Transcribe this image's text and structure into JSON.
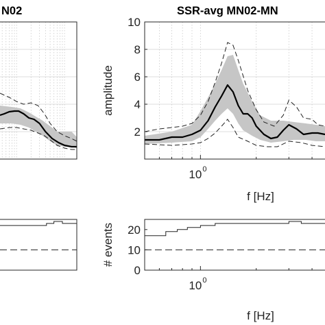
{
  "chart_data": [
    {
      "panel": "ssr-avg-mn02-left-top",
      "type": "line",
      "title": "N02",
      "x_scale": "log",
      "xlim": [
        0.45,
        18
      ],
      "ylim": [
        0,
        10
      ],
      "series": [
        {
          "role": "mean",
          "x": [
            0.45,
            0.55,
            0.7,
            0.9,
            1.1,
            1.4,
            1.8,
            2.3,
            3,
            4,
            5.5,
            7.5,
            10,
            14,
            18
          ],
          "y": [
            3.2,
            3.3,
            3.45,
            3.5,
            3.5,
            3.3,
            3.0,
            2.9,
            2.6,
            2.0,
            1.5,
            1.2,
            1.0,
            0.9,
            0.9
          ]
        },
        {
          "role": "mean-plus-std",
          "x": [
            0.45,
            0.7,
            1.0,
            1.4,
            2,
            2.8,
            3.8,
            5,
            7,
            10,
            14,
            18
          ],
          "y": [
            4.8,
            4.5,
            4.2,
            4.0,
            4.1,
            3.9,
            3.3,
            2.6,
            2.0,
            1.7,
            1.5,
            1.3
          ]
        },
        {
          "role": "mean-minus-std",
          "x": [
            0.45,
            0.7,
            1.0,
            1.4,
            2,
            2.8,
            3.8,
            5,
            7,
            10,
            14,
            18
          ],
          "y": [
            2.2,
            2.3,
            2.3,
            2.2,
            2.1,
            1.9,
            1.7,
            1.4,
            1.0,
            0.8,
            0.7,
            0.7
          ]
        },
        {
          "role": "band-upper",
          "x": [
            0.45,
            0.8,
            1.2,
            1.8,
            2.5,
            3.5,
            5,
            7,
            10,
            14,
            18
          ],
          "y": [
            3.9,
            3.8,
            3.7,
            3.4,
            3.1,
            2.8,
            2.4,
            2.0,
            2.0,
            2.0,
            1.6
          ]
        },
        {
          "role": "band-lower",
          "x": [
            0.45,
            0.8,
            1.2,
            1.8,
            2.5,
            3.5,
            5,
            7,
            10,
            14,
            18
          ],
          "y": [
            2.6,
            2.6,
            2.5,
            2.3,
            2.0,
            1.7,
            1.3,
            1.0,
            0.9,
            0.9,
            0.8
          ]
        }
      ]
    },
    {
      "panel": "ssr-avg-mn02-right-top",
      "type": "line",
      "title": "SSR-avg MN02-MN",
      "xlabel": "f [Hz]",
      "ylabel": "amplitude",
      "x_scale": "log",
      "xlim": [
        0.5,
        4.7
      ],
      "ylim": [
        0,
        10
      ],
      "yticks": [
        2,
        4,
        6,
        8,
        10
      ],
      "xtick_base": "10",
      "xtick_exponent": "0",
      "series": [
        {
          "role": "mean",
          "x": [
            0.5,
            0.6,
            0.7,
            0.8,
            0.9,
            1.0,
            1.1,
            1.2,
            1.3,
            1.4,
            1.5,
            1.6,
            1.7,
            1.8,
            1.9,
            2.0,
            2.2,
            2.4,
            2.6,
            2.8,
            3.0,
            3.3,
            3.6,
            4.0,
            4.3,
            4.7
          ],
          "y": [
            1.4,
            1.4,
            1.6,
            1.6,
            1.8,
            2.1,
            2.8,
            3.8,
            4.6,
            5.4,
            4.9,
            3.9,
            3.3,
            3.3,
            3.0,
            2.4,
            1.8,
            1.5,
            1.6,
            2.1,
            2.5,
            2.2,
            1.8,
            1.9,
            1.9,
            1.8
          ]
        },
        {
          "role": "mean-plus-std",
          "x": [
            0.5,
            0.6,
            0.7,
            0.8,
            0.9,
            1.0,
            1.1,
            1.2,
            1.3,
            1.4,
            1.5,
            1.6,
            1.8,
            2.0,
            2.2,
            2.5,
            2.8,
            3.0,
            3.3,
            3.6,
            4.0,
            4.3,
            4.7
          ],
          "y": [
            2.0,
            2.2,
            2.3,
            2.4,
            2.6,
            3.2,
            4.2,
            5.6,
            7.0,
            8.5,
            8.3,
            7.2,
            5.0,
            3.6,
            2.7,
            2.4,
            3.2,
            4.3,
            3.8,
            3.0,
            2.9,
            2.5,
            2.4
          ]
        },
        {
          "role": "mean-minus-std",
          "x": [
            0.5,
            0.7,
            0.9,
            1.0,
            1.1,
            1.2,
            1.3,
            1.4,
            1.5,
            1.6,
            1.8,
            2.0,
            2.3,
            2.6,
            3.0,
            3.5,
            4.0,
            4.7
          ],
          "y": [
            1.1,
            1.0,
            1.1,
            1.2,
            1.5,
            1.9,
            2.4,
            2.9,
            2.3,
            1.6,
            1.3,
            1.0,
            0.9,
            0.9,
            1.3,
            1.2,
            1.0,
            0.9
          ]
        },
        {
          "role": "band-upper",
          "x": [
            0.5,
            0.7,
            0.9,
            1.0,
            1.1,
            1.2,
            1.3,
            1.4,
            1.5,
            1.6,
            1.7,
            1.9,
            2.1,
            2.4,
            2.8,
            3.2,
            3.7,
            4.2,
            4.7
          ],
          "y": [
            1.7,
            2.0,
            2.5,
            3.5,
            4.5,
            5.5,
            6.5,
            7.5,
            7.6,
            6.5,
            5.5,
            4.2,
            3.2,
            2.8,
            2.8,
            2.7,
            2.6,
            2.5,
            2.4
          ]
        },
        {
          "role": "band-lower",
          "x": [
            0.5,
            0.7,
            0.9,
            1.0,
            1.1,
            1.2,
            1.3,
            1.4,
            1.5,
            1.6,
            1.7,
            1.9,
            2.1,
            2.4,
            2.8,
            3.2,
            3.7,
            4.2,
            4.7
          ],
          "y": [
            1.1,
            1.2,
            1.3,
            1.6,
            2.2,
            2.8,
            3.3,
            3.7,
            3.3,
            2.6,
            2.1,
            1.7,
            1.4,
            1.2,
            1.3,
            1.4,
            1.4,
            1.3,
            1.3
          ]
        }
      ]
    },
    {
      "panel": "events-left-bottom",
      "type": "line",
      "x_scale": "log",
      "xlim": [
        0.45,
        18
      ],
      "ylim": [
        0,
        25
      ],
      "series": [
        {
          "role": "event-count",
          "x": [
            0.45,
            1.5,
            3,
            4.2,
            6,
            9,
            13,
            18
          ],
          "y": [
            22,
            22,
            22,
            23,
            24,
            23,
            23,
            23
          ]
        },
        {
          "role": "threshold",
          "x": [
            0.45,
            18
          ],
          "y": [
            10,
            10
          ]
        }
      ]
    },
    {
      "panel": "events-right-bottom",
      "type": "line",
      "xlabel": "f [Hz]",
      "ylabel": "# events",
      "x_scale": "log",
      "xlim": [
        0.5,
        4.7
      ],
      "ylim": [
        0,
        25
      ],
      "yticks": [
        0,
        10,
        20
      ],
      "xtick_base": "10",
      "xtick_exponent": "0",
      "series": [
        {
          "role": "event-count",
          "x": [
            0.5,
            0.58,
            0.65,
            0.75,
            0.85,
            1.0,
            1.2,
            1.5,
            2.0,
            2.5,
            3.0,
            3.5,
            4.0,
            4.7
          ],
          "y": [
            17,
            17,
            19,
            20,
            21,
            22,
            23,
            23,
            23,
            23,
            24,
            23,
            23,
            23
          ]
        },
        {
          "role": "threshold",
          "x": [
            0.5,
            4.7
          ],
          "y": [
            10,
            10
          ]
        }
      ]
    }
  ]
}
